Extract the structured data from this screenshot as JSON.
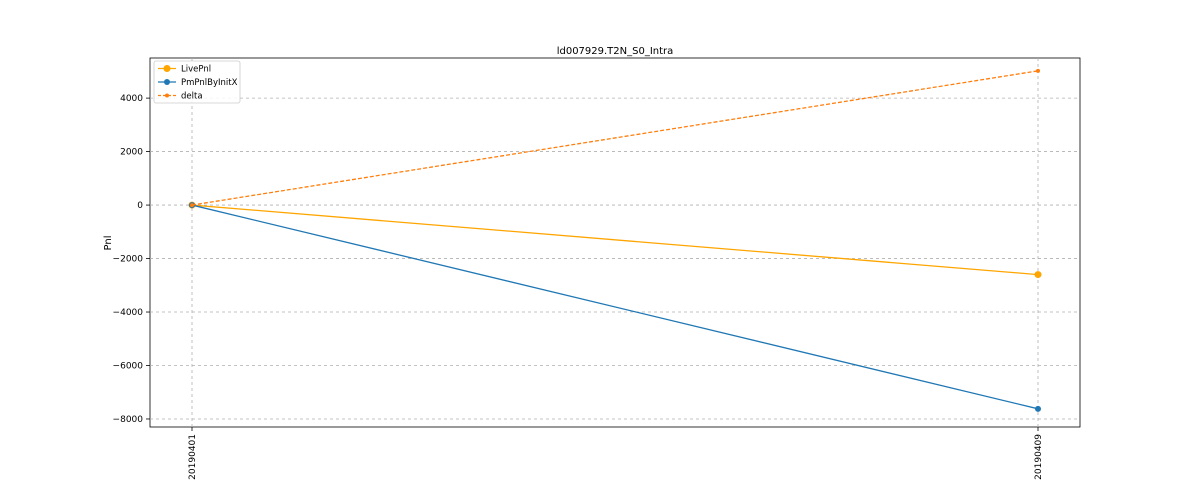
{
  "chart_data": {
    "type": "line",
    "title": "ld007929.T2N_S0_Intra",
    "xlabel": "",
    "ylabel": "Pnl",
    "categories": [
      "20190401",
      "20190409"
    ],
    "ylim": [
      -8300,
      5500
    ],
    "yticks": [
      4000,
      2000,
      0,
      -2000,
      -4000,
      -6000,
      -8000
    ],
    "ytick_labels": [
      "4000",
      "2000",
      "0",
      "−2000",
      "−4000",
      "−6000",
      "−8000"
    ],
    "grid": true,
    "legend_position": "top-left",
    "series": [
      {
        "name": "LivePnl",
        "values": [
          0,
          -2600
        ],
        "color": "#ffa500",
        "style": "solid",
        "marker": "large-circle"
      },
      {
        "name": "PmPnlByInitX",
        "values": [
          0,
          -7620
        ],
        "color": "#1f77b4",
        "style": "solid",
        "marker": "circle"
      },
      {
        "name": "delta",
        "values": [
          0,
          5020
        ],
        "color": "#ff7f0e",
        "style": "dashed",
        "marker": "small-circle"
      }
    ]
  }
}
